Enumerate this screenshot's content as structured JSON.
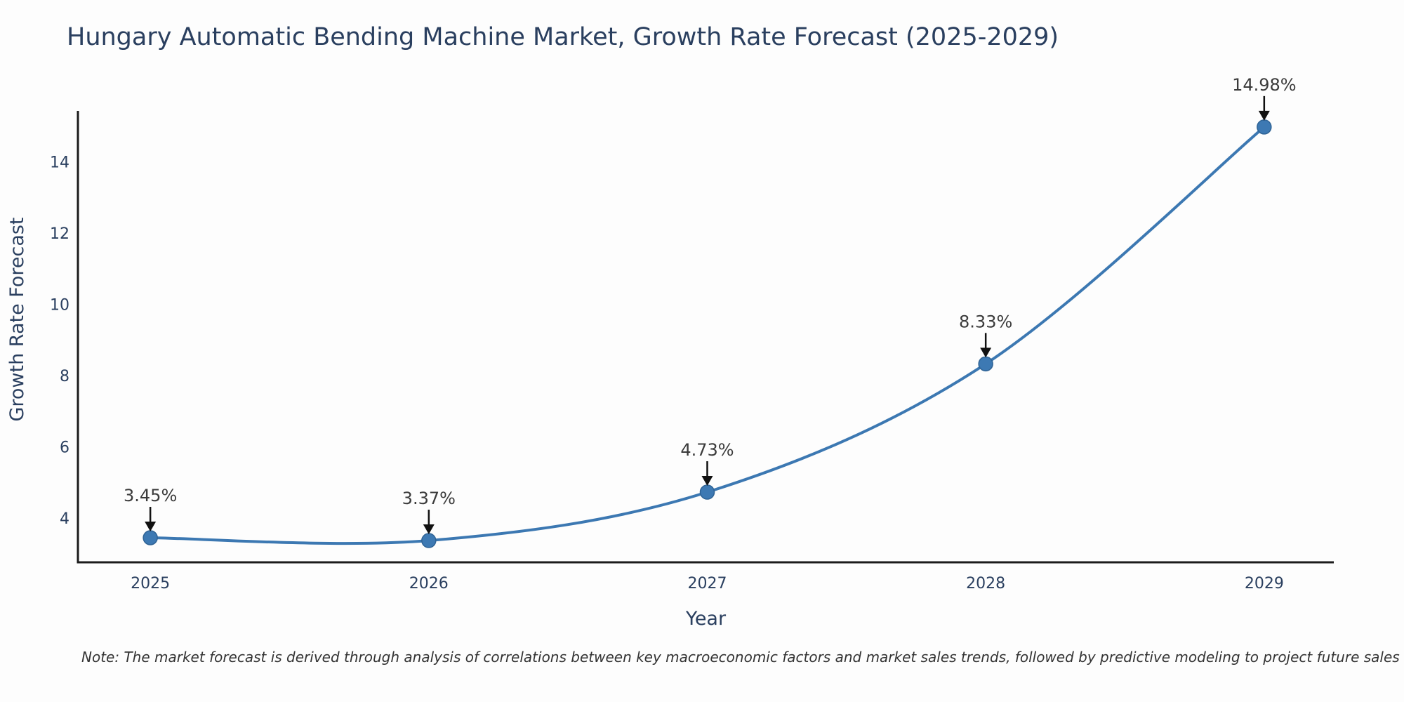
{
  "chart_data": {
    "type": "line",
    "title": "Hungary Automatic Bending Machine Market, Growth Rate Forecast (2025-2029)",
    "xlabel": "Year",
    "ylabel": "Growth Rate Forecast",
    "x": [
      2025,
      2026,
      2027,
      2028,
      2029
    ],
    "series": [
      {
        "name": "Growth Rate Forecast",
        "values": [
          3.45,
          3.37,
          4.73,
          8.33,
          14.98
        ]
      }
    ],
    "point_labels": [
      "3.45%",
      "3.37%",
      "4.73%",
      "8.33%",
      "14.98%"
    ],
    "x_ticks": [
      2025,
      2026,
      2027,
      2028,
      2029
    ],
    "y_ticks": [
      4,
      6,
      8,
      10,
      12,
      14
    ],
    "xlim": [
      2024.74,
      2029.25
    ],
    "ylim": [
      2.76,
      15.43
    ],
    "grid": false,
    "legend": "none",
    "curve": "spline",
    "colors": {
      "line": "#3c78b2",
      "marker": "#3d79b3",
      "marker_edge": "#2f6395",
      "axis": "#1c1c1c",
      "text": "#2a3f5f",
      "annotation": "#3b3b3b",
      "arrow": "#111111"
    }
  },
  "footnote": {
    "text": "Note: The market forecast is derived through analysis of correlations between key macroeconomic factors and market sales trends, followed by predictive modeling to project future sales"
  }
}
